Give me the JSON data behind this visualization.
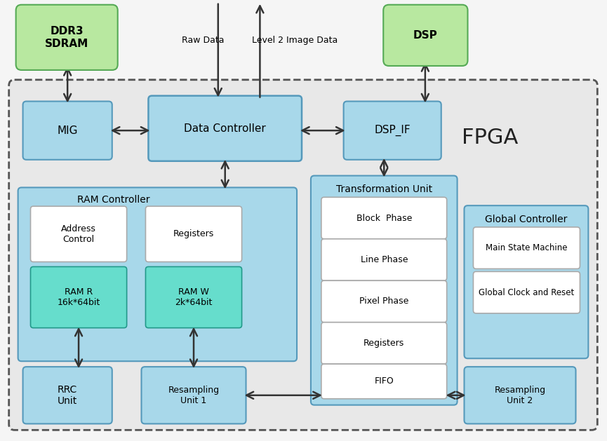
{
  "fig_width": 8.65,
  "fig_height": 6.29,
  "fig_bg": "#f5f5f5",
  "fpga_bg": "#e8e8e8",
  "fpga_edge": "#555555",
  "blue_box": "#a8d8ea",
  "blue_edge": "#5599bb",
  "green_box": "#b8e8a0",
  "green_edge": "#55aa55",
  "teal_box": "#66ddcc",
  "teal_edge": "#22998a",
  "white_box": "#ffffff",
  "white_edge": "#aaaaaa",
  "arrow_color": "#333333",
  "text_color": "#000000",
  "fpga_label": "FPGA",
  "raw_data_label": "Raw Data",
  "level2_label": "Level 2 Image Data",
  "ram_ctrl_label": "RAM Controller",
  "transform_label": "Transformation Unit",
  "global_ctrl_label": "Global Controller"
}
